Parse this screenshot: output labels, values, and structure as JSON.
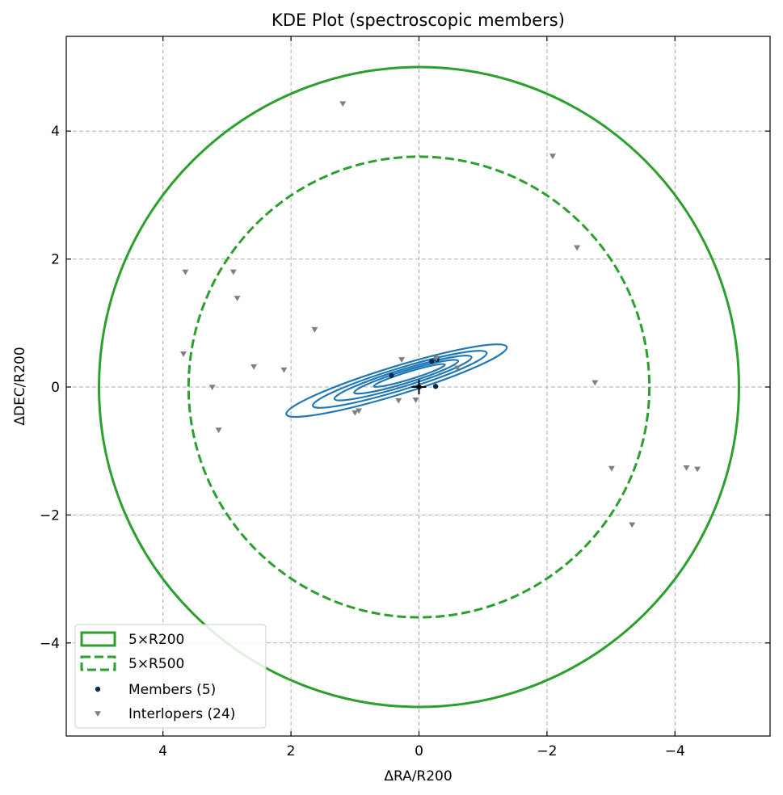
{
  "chart_data": {
    "type": "scatter",
    "title": "KDE Plot (spectroscopic members)",
    "xlabel": "ΔRA/R200",
    "ylabel": "ΔDEC/R200",
    "xlim": [
      5.5,
      -5.5
    ],
    "ylim": [
      -5.5,
      5.5
    ],
    "x_inverted": true,
    "grid": true,
    "xticks": [
      4,
      2,
      0,
      -2,
      -4
    ],
    "yticks": [
      4,
      2,
      0,
      -2,
      -4
    ],
    "xtick_labels": [
      "4",
      "2",
      "0",
      "−2",
      "−4"
    ],
    "ytick_labels": [
      "4",
      "2",
      "0",
      "−2",
      "−4"
    ],
    "legend_position": "lower-left",
    "center": [
      0,
      0
    ],
    "circles": [
      {
        "name": "5×R200",
        "radius": 5.0,
        "style": "solid",
        "color": "#2ca02c"
      },
      {
        "name": "5×R500",
        "radius": 3.6,
        "style": "dashed",
        "color": "#2ca02c"
      }
    ],
    "kde_contours": {
      "color": "#1f77b4",
      "levels": [
        {
          "center": [
            0.35,
            0.1
          ],
          "rx": 1.8,
          "ry": 0.22,
          "angle_deg": 17
        },
        {
          "center": [
            0.3,
            0.12
          ],
          "rx": 1.42,
          "ry": 0.17,
          "angle_deg": 17
        },
        {
          "center": [
            0.25,
            0.14
          ],
          "rx": 1.12,
          "ry": 0.13,
          "angle_deg": 17
        },
        {
          "center": [
            0.2,
            0.16
          ],
          "rx": 0.85,
          "ry": 0.095,
          "angle_deg": 17
        },
        {
          "center": [
            0.15,
            0.18
          ],
          "rx": 0.58,
          "ry": 0.06,
          "angle_deg": 17
        }
      ]
    },
    "series": [
      {
        "name": "Members (5)",
        "marker": "circle",
        "color": "#0b2a55",
        "points": [
          [
            0.43,
            0.18
          ],
          [
            -0.26,
            0.01
          ],
          [
            -0.28,
            0.43
          ],
          [
            -0.2,
            0.4
          ],
          [
            0.0,
            0.0
          ]
        ]
      },
      {
        "name": "Interlopers (24)",
        "marker": "triangle-down",
        "color": "#808080",
        "points": [
          [
            1.19,
            4.43
          ],
          [
            -2.09,
            3.61
          ],
          [
            -2.47,
            2.18
          ],
          [
            3.65,
            1.8
          ],
          [
            2.9,
            1.8
          ],
          [
            2.84,
            1.39
          ],
          [
            1.63,
            0.9
          ],
          [
            3.68,
            0.52
          ],
          [
            2.58,
            0.32
          ],
          [
            2.11,
            0.27
          ],
          [
            3.23,
            0.0
          ],
          [
            -2.75,
            0.07
          ],
          [
            3.13,
            -0.67
          ],
          [
            0.94,
            -0.37
          ],
          [
            0.32,
            -0.21
          ],
          [
            -3.01,
            -1.27
          ],
          [
            -4.18,
            -1.26
          ],
          [
            -4.35,
            -1.28
          ],
          [
            -3.33,
            -2.15
          ],
          [
            0.27,
            0.43
          ],
          [
            -0.27,
            0.45
          ],
          [
            0.05,
            -0.2
          ],
          [
            -0.6,
            0.3
          ],
          [
            1.0,
            -0.4
          ]
        ]
      }
    ],
    "origin_marker": {
      "x": 0,
      "y": 0,
      "marker": "plus",
      "color": "#000000"
    }
  }
}
